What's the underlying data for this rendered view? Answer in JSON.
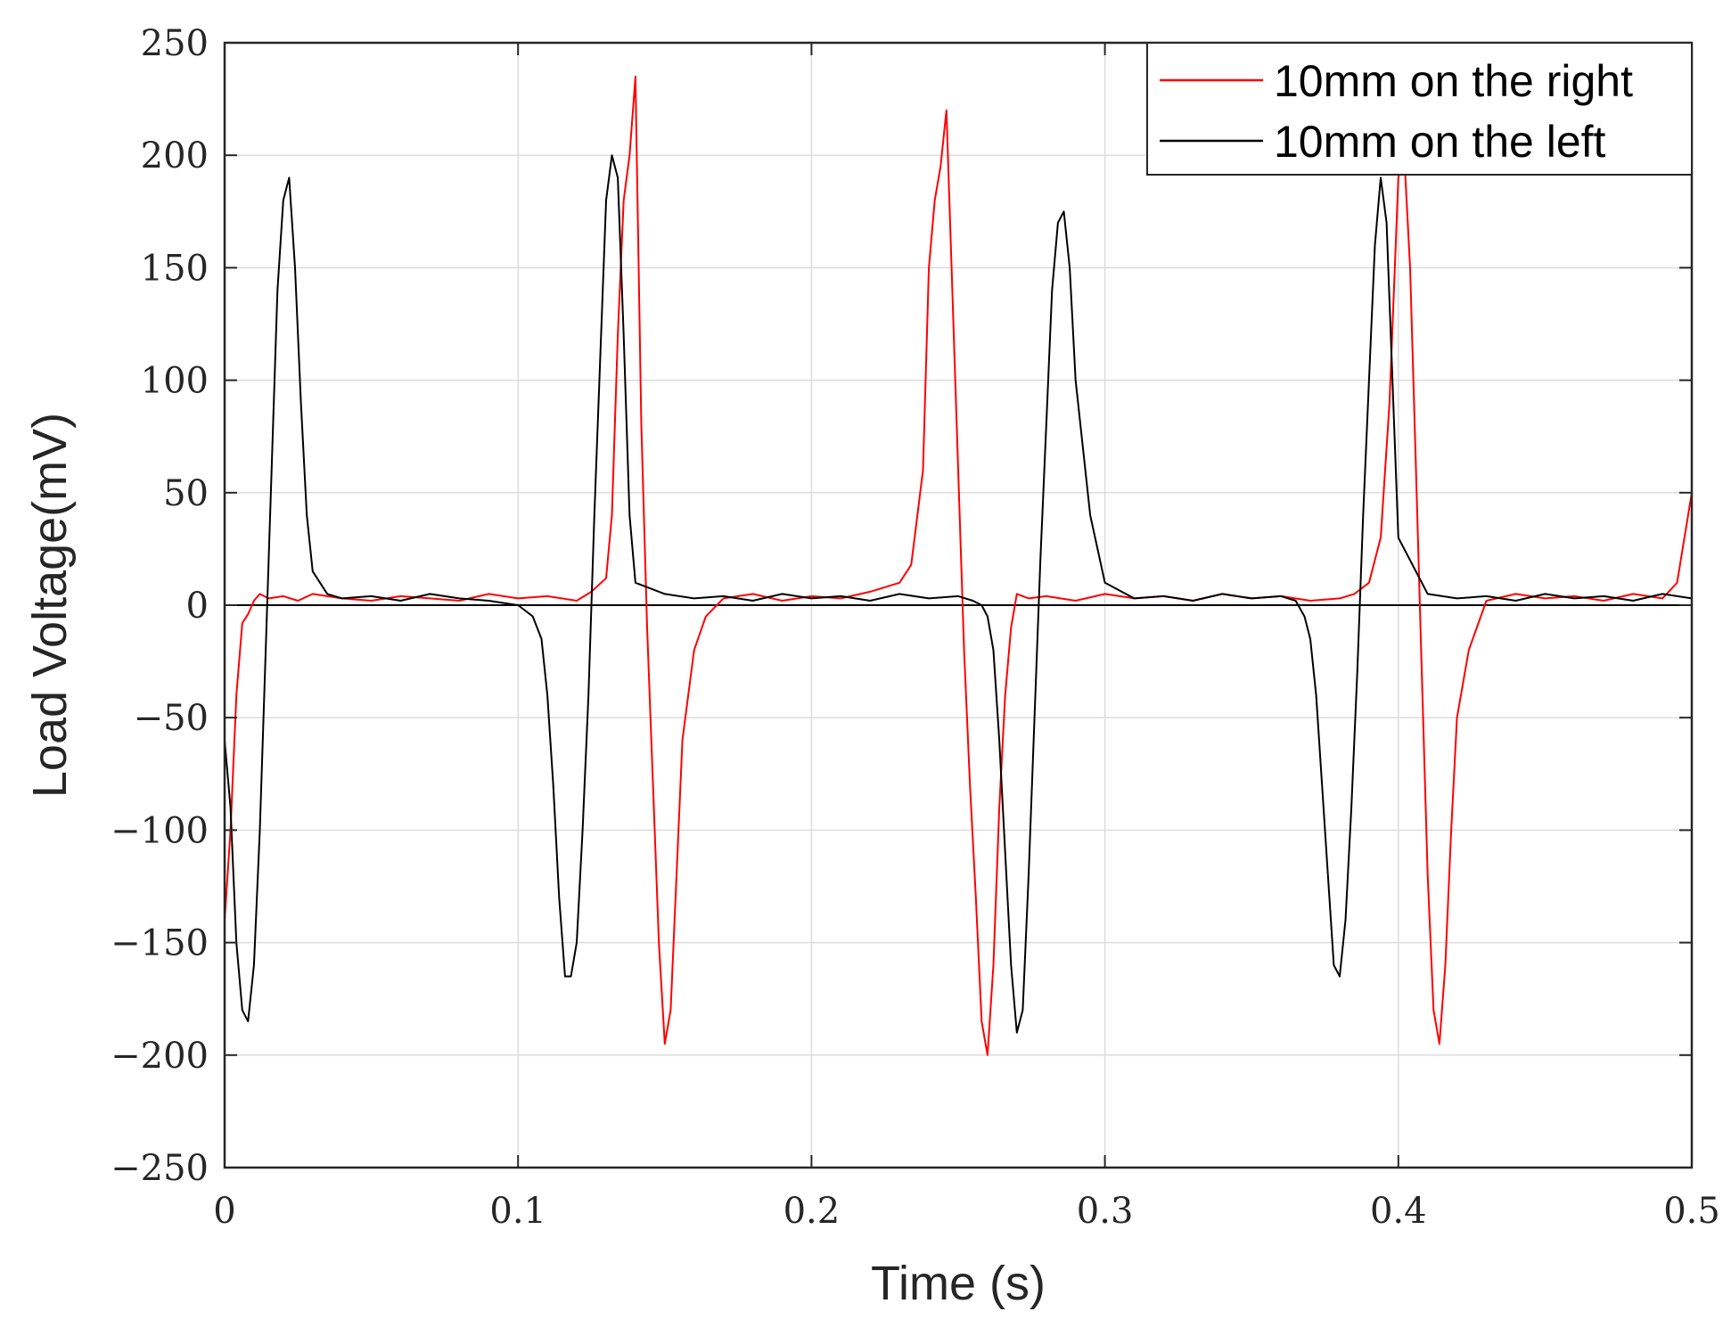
{
  "chart_data": {
    "type": "line",
    "title": "",
    "xlabel": "Time (s)",
    "ylabel": "Load Voltage(mV)",
    "xlim": [
      0,
      0.5
    ],
    "ylim": [
      -250,
      250
    ],
    "xticks": [
      0,
      0.1,
      0.2,
      0.3,
      0.4,
      0.5
    ],
    "xtick_labels": [
      "0",
      "0.1",
      "0.2",
      "0.3",
      "0.4",
      "0.5"
    ],
    "yticks": [
      -250,
      -200,
      -150,
      -100,
      -50,
      0,
      50,
      100,
      150,
      200,
      250
    ],
    "ytick_labels": [
      "−250",
      "−200",
      "−150",
      "−100",
      "−50",
      "0",
      "50",
      "100",
      "150",
      "200",
      "250"
    ],
    "grid": true,
    "zero_line": true,
    "legend_position": "top-right",
    "series": [
      {
        "name": "10mm on the right",
        "color": "#ff0000",
        "x": [
          0,
          0.002,
          0.004,
          0.006,
          0.008,
          0.01,
          0.012,
          0.015,
          0.02,
          0.025,
          0.03,
          0.04,
          0.05,
          0.06,
          0.07,
          0.08,
          0.09,
          0.1,
          0.11,
          0.12,
          0.125,
          0.13,
          0.132,
          0.134,
          0.136,
          0.138,
          0.14,
          0.142,
          0.144,
          0.146,
          0.148,
          0.15,
          0.152,
          0.154,
          0.156,
          0.16,
          0.164,
          0.17,
          0.18,
          0.19,
          0.2,
          0.21,
          0.22,
          0.23,
          0.234,
          0.238,
          0.24,
          0.242,
          0.244,
          0.246,
          0.248,
          0.25,
          0.252,
          0.254,
          0.256,
          0.258,
          0.26,
          0.262,
          0.264,
          0.266,
          0.268,
          0.27,
          0.274,
          0.28,
          0.29,
          0.3,
          0.31,
          0.32,
          0.33,
          0.34,
          0.35,
          0.36,
          0.37,
          0.38,
          0.385,
          0.39,
          0.394,
          0.397,
          0.4,
          0.402,
          0.404,
          0.406,
          0.408,
          0.41,
          0.412,
          0.414,
          0.416,
          0.418,
          0.42,
          0.424,
          0.43,
          0.44,
          0.45,
          0.46,
          0.47,
          0.48,
          0.49,
          0.495,
          0.5
        ],
        "y": [
          -140,
          -100,
          -40,
          -8,
          -4,
          2,
          5,
          3,
          4,
          2,
          5,
          3,
          2,
          4,
          3,
          2,
          5,
          3,
          4,
          2,
          6,
          12,
          40,
          120,
          180,
          200,
          235,
          80,
          -10,
          -80,
          -150,
          -195,
          -180,
          -120,
          -60,
          -20,
          -5,
          3,
          5,
          2,
          4,
          3,
          6,
          10,
          18,
          60,
          150,
          180,
          195,
          220,
          140,
          60,
          -20,
          -80,
          -130,
          -185,
          -200,
          -160,
          -90,
          -40,
          -10,
          5,
          3,
          4,
          2,
          5,
          3,
          4,
          2,
          5,
          3,
          4,
          2,
          3,
          5,
          10,
          30,
          90,
          190,
          200,
          150,
          60,
          -30,
          -120,
          -180,
          -195,
          -160,
          -100,
          -50,
          -20,
          2,
          5,
          3,
          4,
          2,
          5,
          3,
          10,
          50
        ]
      },
      {
        "name": "10mm on the left",
        "color": "#000000",
        "x": [
          0,
          0.002,
          0.004,
          0.006,
          0.008,
          0.01,
          0.012,
          0.014,
          0.016,
          0.018,
          0.02,
          0.022,
          0.024,
          0.026,
          0.028,
          0.03,
          0.035,
          0.04,
          0.05,
          0.06,
          0.07,
          0.08,
          0.09,
          0.1,
          0.102,
          0.105,
          0.108,
          0.11,
          0.112,
          0.114,
          0.116,
          0.118,
          0.12,
          0.122,
          0.124,
          0.126,
          0.128,
          0.13,
          0.132,
          0.134,
          0.136,
          0.138,
          0.14,
          0.15,
          0.16,
          0.17,
          0.18,
          0.19,
          0.2,
          0.21,
          0.22,
          0.23,
          0.24,
          0.25,
          0.255,
          0.258,
          0.26,
          0.262,
          0.264,
          0.266,
          0.268,
          0.27,
          0.272,
          0.274,
          0.276,
          0.278,
          0.28,
          0.282,
          0.284,
          0.286,
          0.288,
          0.29,
          0.295,
          0.3,
          0.31,
          0.32,
          0.33,
          0.34,
          0.35,
          0.36,
          0.365,
          0.368,
          0.37,
          0.372,
          0.374,
          0.376,
          0.378,
          0.38,
          0.382,
          0.384,
          0.386,
          0.388,
          0.39,
          0.392,
          0.394,
          0.396,
          0.398,
          0.4,
          0.41,
          0.42,
          0.43,
          0.44,
          0.45,
          0.46,
          0.47,
          0.48,
          0.49,
          0.5
        ],
        "y": [
          -60,
          -90,
          -150,
          -180,
          -185,
          -160,
          -100,
          -20,
          60,
          140,
          180,
          190,
          150,
          90,
          40,
          15,
          5,
          3,
          4,
          2,
          5,
          3,
          2,
          0,
          -2,
          -5,
          -15,
          -40,
          -80,
          -130,
          -165,
          -165,
          -150,
          -100,
          -40,
          40,
          110,
          180,
          200,
          190,
          120,
          40,
          10,
          5,
          3,
          4,
          2,
          5,
          3,
          4,
          2,
          5,
          3,
          4,
          2,
          0,
          -5,
          -20,
          -60,
          -110,
          -160,
          -190,
          -180,
          -120,
          -50,
          20,
          80,
          140,
          170,
          175,
          150,
          100,
          40,
          10,
          3,
          4,
          2,
          5,
          3,
          4,
          2,
          -5,
          -15,
          -40,
          -80,
          -120,
          -160,
          -165,
          -140,
          -90,
          -30,
          40,
          100,
          160,
          190,
          170,
          100,
          30,
          5,
          3,
          4,
          2,
          5,
          3,
          4,
          2,
          5,
          3
        ]
      }
    ]
  }
}
